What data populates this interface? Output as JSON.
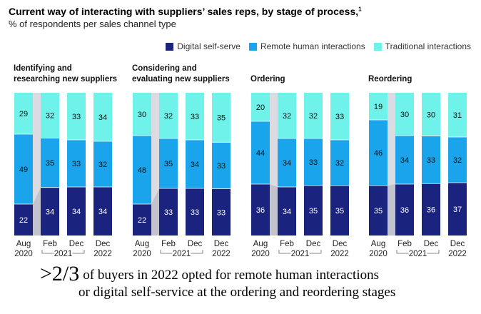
{
  "title": "Current way of interacting with suppliers’ sales reps, by stage of process,",
  "title_footnote": "1",
  "subtitle": "% of respondents per sales channel type",
  "colors": {
    "digital": "#1a237e",
    "remote": "#1aa4ec",
    "traditional": "#6ff2ea",
    "connector": "#bdbdc9",
    "label_dark": "#ffffff",
    "label_light": "#111111"
  },
  "legend": [
    {
      "name": "Digital self-serve",
      "color": "#1a237e"
    },
    {
      "name": "Remote human interactions",
      "color": "#1aa4ec"
    },
    {
      "name": "Traditional interactions",
      "color": "#6ff2ea"
    }
  ],
  "chart_data": {
    "type": "bar",
    "stacked": true,
    "units": "%",
    "series_names": [
      "Digital self-serve",
      "Remote human interactions",
      "Traditional interactions"
    ],
    "x_labels": [
      {
        "top": "Aug",
        "bottom": "2020"
      },
      {
        "top": "Feb",
        "bottom": ""
      },
      {
        "top": "Dec",
        "bottom": ""
      },
      {
        "top": "Dec",
        "bottom": "2022"
      }
    ],
    "year_bracket_label": "2021",
    "panels": [
      {
        "title": [
          "Identifying and",
          "researching new suppliers"
        ],
        "digital": [
          22,
          34,
          34,
          34
        ],
        "remote": [
          49,
          35,
          33,
          32
        ],
        "traditional": [
          29,
          32,
          33,
          34
        ]
      },
      {
        "title": [
          "Considering and",
          "evaluating new suppliers"
        ],
        "digital": [
          22,
          33,
          33,
          33
        ],
        "remote": [
          48,
          35,
          34,
          33
        ],
        "traditional": [
          30,
          32,
          33,
          35
        ]
      },
      {
        "title": [
          "Ordering"
        ],
        "digital": [
          36,
          34,
          35,
          35
        ],
        "remote": [
          44,
          34,
          33,
          32
        ],
        "traditional": [
          20,
          32,
          32,
          33
        ]
      },
      {
        "title": [
          "Reordering"
        ],
        "digital": [
          35,
          36,
          36,
          37
        ],
        "remote": [
          46,
          34,
          33,
          32
        ],
        "traditional": [
          19,
          30,
          30,
          31
        ]
      }
    ]
  },
  "footer": {
    "highlight": ">2/3",
    "line1": "of buyers in 2022 opted for remote human interactions",
    "line2": "or digital self-service at the ordering and reordering stages"
  }
}
